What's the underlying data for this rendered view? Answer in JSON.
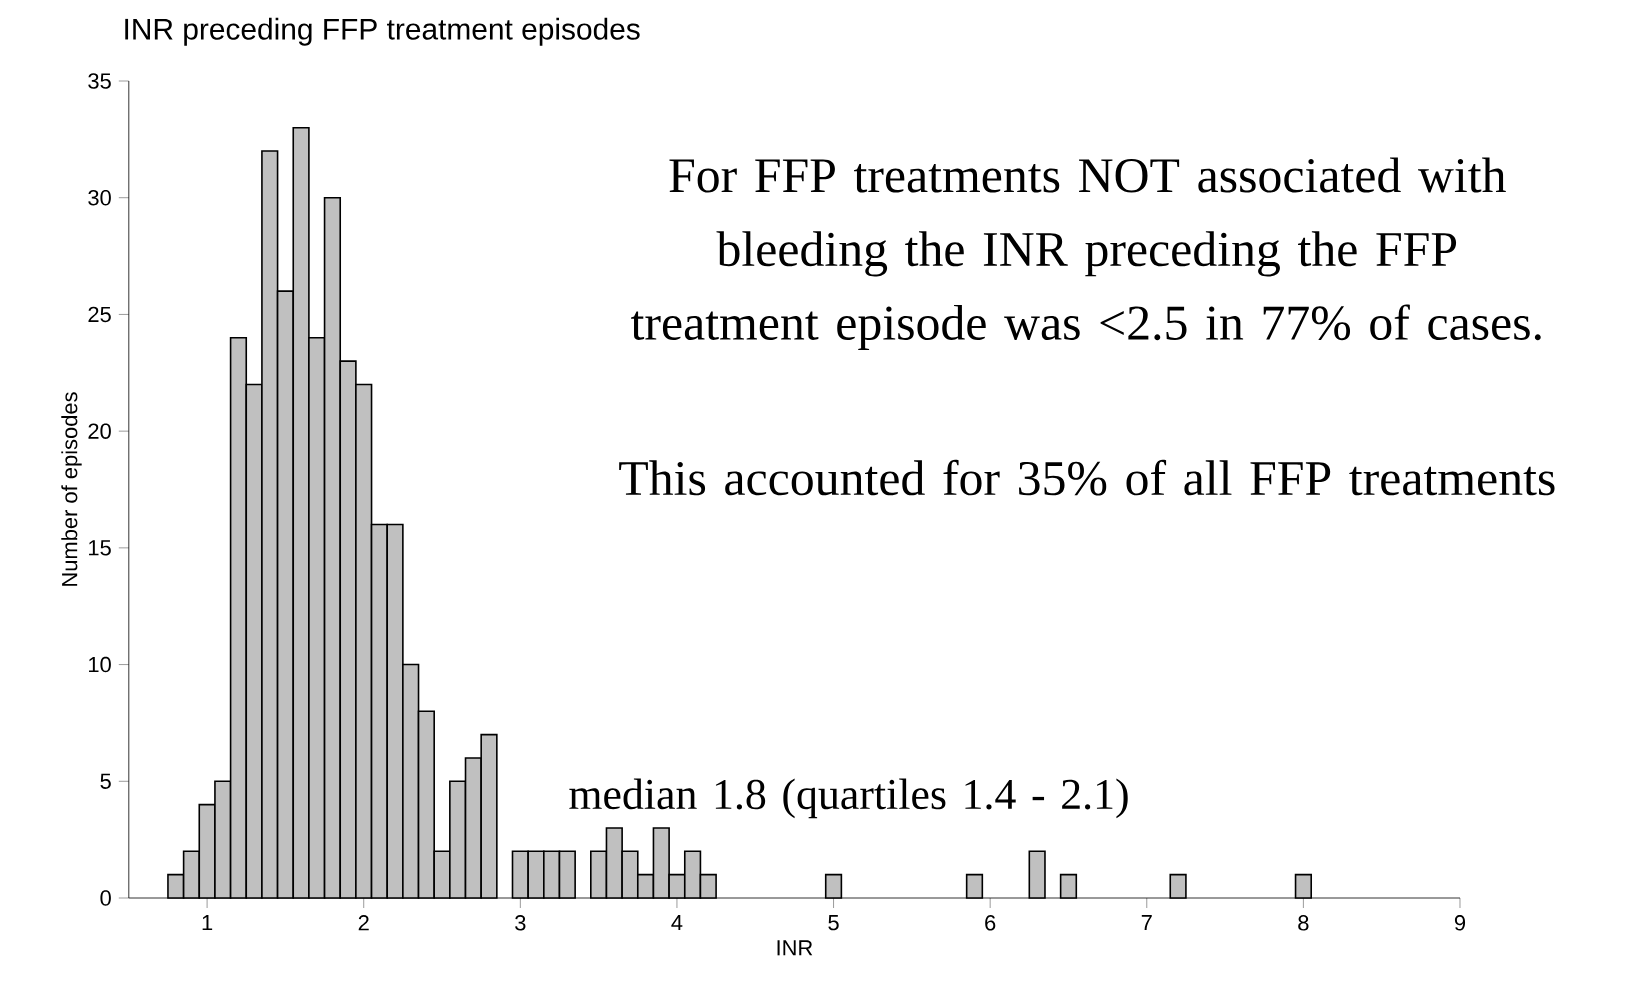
{
  "chart_data": {
    "type": "histogram",
    "title": "INR preceding FFP treatment episodes",
    "xlabel": "INR",
    "ylabel": "Number of episodes",
    "bins": [
      0.75,
      0.85,
      0.95,
      1.05,
      1.15,
      1.25,
      1.35,
      1.45,
      1.55,
      1.65,
      1.75,
      1.85,
      1.95,
      2.05,
      2.15,
      2.25,
      2.35,
      2.45,
      2.55,
      2.65,
      2.75,
      2.85,
      2.95,
      3.05,
      3.15,
      3.25,
      3.35,
      3.45,
      3.55,
      3.65,
      3.75,
      3.85,
      3.95,
      4.05,
      4.15,
      4.25,
      4.35,
      4.45,
      4.55,
      4.65,
      4.75,
      4.85,
      4.95,
      5.05,
      5.15,
      5.25,
      5.35,
      5.45,
      5.55,
      5.65,
      5.75,
      5.85,
      5.95,
      6.05,
      6.15,
      6.25,
      6.35,
      6.45,
      6.55,
      6.65,
      6.75,
      6.85,
      6.95,
      7.05,
      7.15,
      7.25,
      7.35,
      7.45,
      7.55,
      7.65,
      7.75,
      7.85,
      7.95,
      8.05
    ],
    "values": [
      1,
      2,
      4,
      5,
      24,
      22,
      32,
      26,
      33,
      24,
      30,
      23,
      22,
      16,
      16,
      10,
      8,
      2,
      5,
      6,
      7,
      0,
      2,
      2,
      2,
      2,
      0,
      2,
      3,
      2,
      1,
      3,
      1,
      2,
      1,
      0,
      0,
      0,
      0,
      0,
      0,
      0,
      1,
      0,
      0,
      0,
      0,
      0,
      0,
      0,
      0,
      1,
      0,
      0,
      0,
      2,
      0,
      1,
      0,
      0,
      0,
      0,
      0,
      0,
      1,
      0,
      0,
      0,
      0,
      0,
      0,
      0,
      1
    ],
    "color": "#c0c0c0",
    "xlim": [
      0.5,
      9
    ],
    "xticks": [
      1,
      2,
      3,
      4,
      5,
      6,
      7,
      8,
      9
    ],
    "ylim": [
      0,
      35
    ],
    "yticks": [
      0,
      5,
      10,
      15,
      20,
      25,
      30,
      35
    ],
    "annotations": [
      "For FFP treatments NOT associated with bleeding the INR preceding the FFP treatment episode was <2.5 in 77% of cases.",
      "This accounted for 35% of all FFP treatments",
      "median 1.8 (quartiles 1.4 - 2.1)"
    ]
  }
}
